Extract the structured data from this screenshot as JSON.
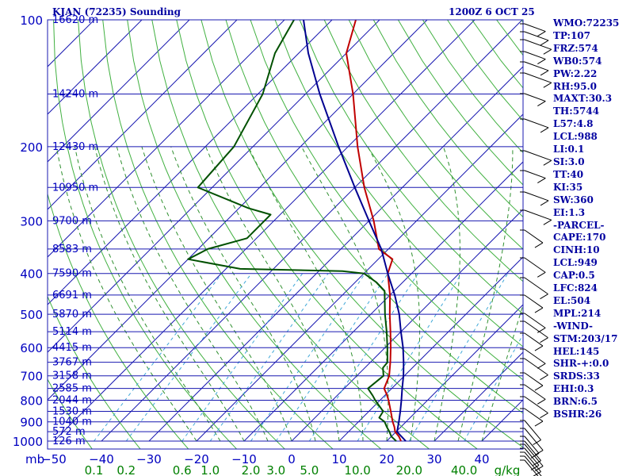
{
  "header": {
    "station": "KJAN (72235) Sounding",
    "time": "1200Z  6 OCT 25"
  },
  "indices": [
    "WMO:72235",
    "TP:107",
    "FRZ:574",
    "WB0:574",
    "PW:2.22",
    "RH:95.0",
    "MAXT:30.3",
    "TH:5744",
    "L57:4.8",
    "LCL:988",
    "LI:0.1",
    "SI:3.0",
    "TT:40",
    "KI:35",
    "SW:360",
    "EI:1.3",
    "-PARCEL-",
    "CAPE:170",
    "CINH:10",
    "LCL:949",
    "CAP:0.5",
    "LFC:824",
    "EL:504",
    "MPL:214",
    "-WIND-",
    "STM:203/17",
    "HEL:145",
    "SHR-+:0.0",
    "SRDS:33",
    "EHI:0.3",
    "BRN:6.5",
    "BSHR:26"
  ],
  "chart_data": {
    "type": "skew-t",
    "pressure_unit": "mb",
    "x_unit": "°C",
    "pressure_ticks": [
      100,
      200,
      300,
      400,
      500,
      600,
      700,
      800,
      900,
      1000
    ],
    "temperature_ticks": [
      -50,
      -40,
      -30,
      -20,
      -10,
      0,
      10,
      20,
      30,
      40
    ],
    "mixing_ratio_unit": "g/kg",
    "mixing_ratio_ticks": [
      "0.1",
      "0.2",
      "0.6",
      "1.0",
      "2.0",
      "3.0",
      "5.0",
      "10.0",
      "20.0",
      "40.0"
    ],
    "height_levels": [
      {
        "p": 100,
        "label": "16620 m"
      },
      {
        "p": 150,
        "label": "14240 m"
      },
      {
        "p": 200,
        "label": "12430 m"
      },
      {
        "p": 250,
        "label": "10950 m"
      },
      {
        "p": 300,
        "label": "9700 m"
      },
      {
        "p": 350,
        "label": "8583 m"
      },
      {
        "p": 400,
        "label": "7590 m"
      },
      {
        "p": 450,
        "label": "6691 m"
      },
      {
        "p": 500,
        "label": "5870 m"
      },
      {
        "p": 550,
        "label": "5114 m"
      },
      {
        "p": 600,
        "label": "4415 m"
      },
      {
        "p": 650,
        "label": "3767 m"
      },
      {
        "p": 700,
        "label": "3158 m"
      },
      {
        "p": 750,
        "label": "2585 m"
      },
      {
        "p": 800,
        "label": "2044 m"
      },
      {
        "p": 850,
        "label": "1530 m"
      },
      {
        "p": 900,
        "label": "1040 m"
      },
      {
        "p": 950,
        "label": "572 m"
      },
      {
        "p": 1000,
        "label": "126 m"
      }
    ],
    "series": [
      {
        "role": "temperature",
        "color": "#c00000",
        "points": [
          [
            1000,
            23
          ],
          [
            975,
            21.6
          ],
          [
            950,
            19.8
          ],
          [
            925,
            18.6
          ],
          [
            900,
            17.2
          ],
          [
            850,
            14.6
          ],
          [
            800,
            11.8
          ],
          [
            775,
            10.2
          ],
          [
            750,
            8.4
          ],
          [
            700,
            6.8
          ],
          [
            650,
            4.2
          ],
          [
            600,
            1.2
          ],
          [
            550,
            -2.2
          ],
          [
            500,
            -6.0
          ],
          [
            450,
            -10.0
          ],
          [
            400,
            -15.0
          ],
          [
            370,
            -17.0
          ],
          [
            350,
            -22.0
          ],
          [
            300,
            -29.0
          ],
          [
            250,
            -38.0
          ],
          [
            200,
            -48.0
          ],
          [
            150,
            -60.0
          ],
          [
            120,
            -70.0
          ],
          [
            100,
            -75.0
          ],
          [
            90,
            -76.0
          ]
        ]
      },
      {
        "role": "dewpoint",
        "color": "#005000",
        "points": [
          [
            1000,
            22.0
          ],
          [
            975,
            20.0
          ],
          [
            950,
            18.6
          ],
          [
            925,
            17.0
          ],
          [
            900,
            15.5
          ],
          [
            880,
            13.5
          ],
          [
            850,
            13.0
          ],
          [
            800,
            9.0
          ],
          [
            780,
            7.5
          ],
          [
            750,
            5.0
          ],
          [
            700,
            5.6
          ],
          [
            670,
            3.8
          ],
          [
            650,
            3.6
          ],
          [
            600,
            0.5
          ],
          [
            550,
            -3.0
          ],
          [
            500,
            -7.0
          ],
          [
            440,
            -12.0
          ],
          [
            420,
            -15.5
          ],
          [
            400,
            -20.0
          ],
          [
            395,
            -25.0
          ],
          [
            390,
            -47.0
          ],
          [
            370,
            -60.0
          ],
          [
            350,
            -58.0
          ],
          [
            330,
            -52.0
          ],
          [
            300,
            -52.0
          ],
          [
            290,
            -52.0
          ],
          [
            280,
            -58.0
          ],
          [
            250,
            -73.0
          ],
          [
            200,
            -74.0
          ],
          [
            150,
            -79.0
          ],
          [
            120,
            -85.0
          ],
          [
            100,
            -88.0
          ],
          [
            90,
            -88.0
          ]
        ]
      },
      {
        "role": "parcel",
        "color": "#000090",
        "points": [
          [
            1000,
            24.0
          ],
          [
            950,
            20.2
          ],
          [
            900,
            18.5
          ],
          [
            850,
            16.6
          ],
          [
            800,
            14.5
          ],
          [
            750,
            12.2
          ],
          [
            700,
            9.8
          ],
          [
            650,
            7.0
          ],
          [
            600,
            3.8
          ],
          [
            550,
            0.0
          ],
          [
            500,
            -4.0
          ],
          [
            450,
            -9.0
          ],
          [
            400,
            -15.0
          ],
          [
            350,
            -21.5
          ],
          [
            300,
            -30.0
          ],
          [
            250,
            -40.0
          ],
          [
            200,
            -52.0
          ],
          [
            150,
            -67.0
          ],
          [
            120,
            -78.0
          ],
          [
            100,
            -86.0
          ],
          [
            90,
            -89.0
          ]
        ]
      }
    ]
  }
}
